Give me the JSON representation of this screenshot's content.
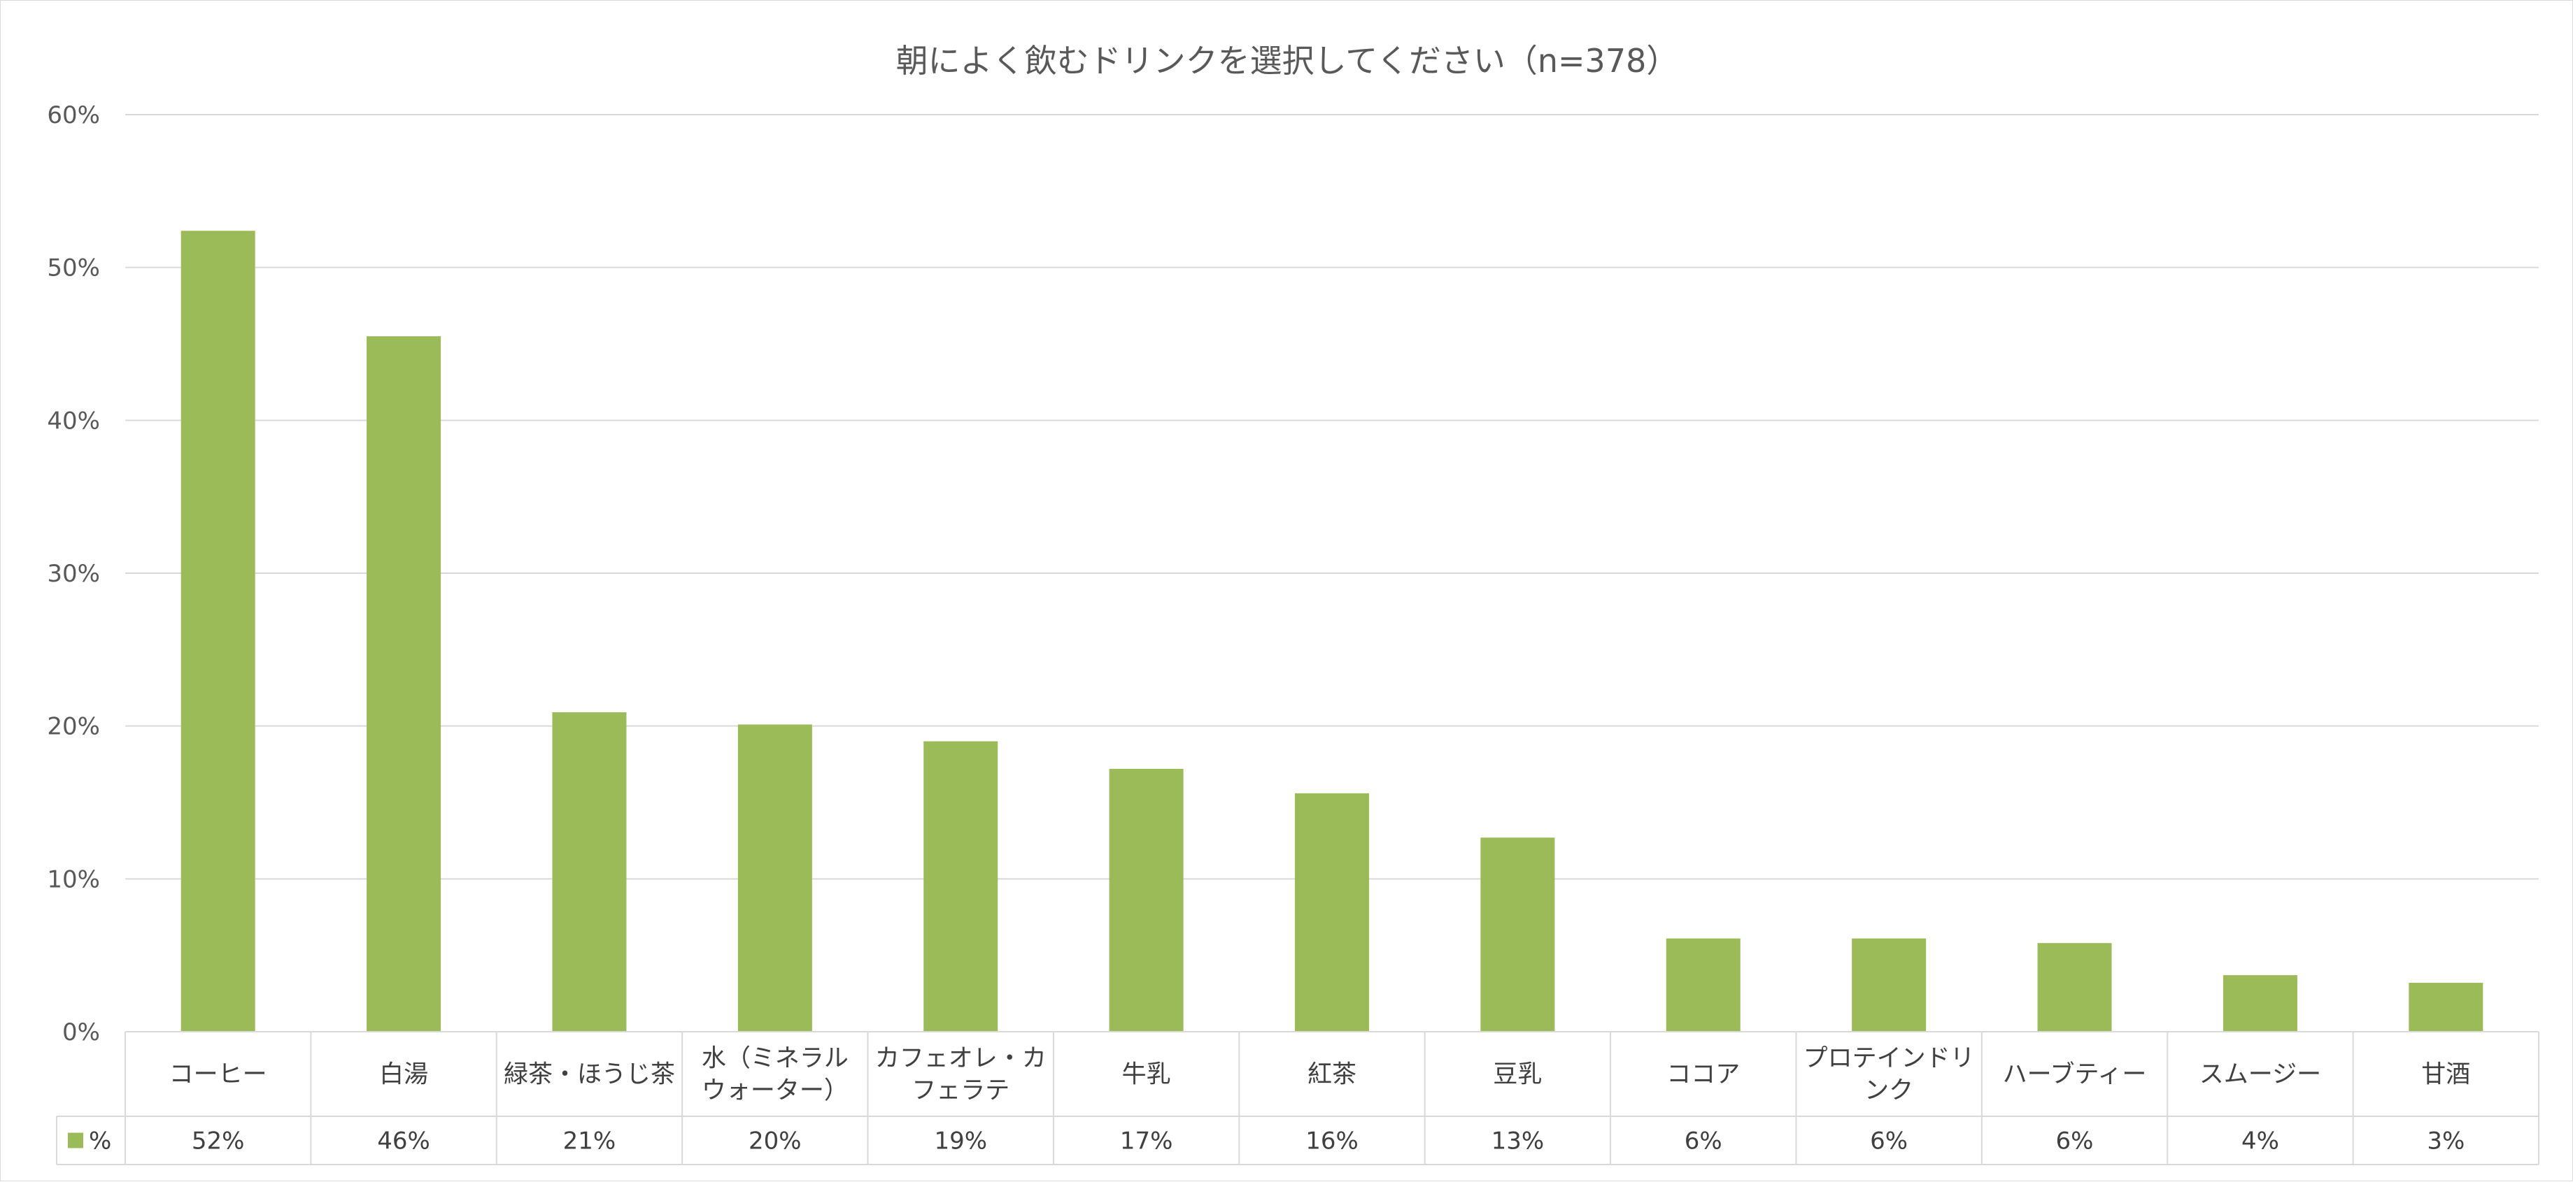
{
  "chart_data": {
    "type": "bar",
    "title": "朝によく飲むドリンクを選択してください（n=378）",
    "xlabel": "",
    "ylabel": "",
    "ylim": [
      0,
      60
    ],
    "y_ticks": [
      "0%",
      "10%",
      "20%",
      "30%",
      "40%",
      "50%",
      "60%"
    ],
    "y_tick_values": [
      0,
      10,
      20,
      30,
      40,
      50,
      60
    ],
    "grid": true,
    "legend_placement": "data-table-left",
    "bar_color": "#9bbb59",
    "categories": [
      [
        "コーヒー"
      ],
      [
        "白湯"
      ],
      [
        "緑茶・ほうじ茶"
      ],
      [
        "水（ミネラル",
        "ウォーター）"
      ],
      [
        "カフェオレ・カ",
        "フェラテ"
      ],
      [
        "牛乳"
      ],
      [
        "紅茶"
      ],
      [
        "豆乳"
      ],
      [
        "ココア"
      ],
      [
        "プロテインドリ",
        "ンク"
      ],
      [
        "ハーブティー"
      ],
      [
        "スムージー"
      ],
      [
        "甘酒"
      ]
    ],
    "series": [
      {
        "name": "%",
        "values": [
          52.4,
          45.5,
          20.9,
          20.1,
          19.0,
          17.2,
          15.6,
          12.7,
          6.1,
          6.1,
          5.8,
          3.7,
          3.2
        ],
        "labels": [
          "52%",
          "46%",
          "21%",
          "20%",
          "19%",
          "17%",
          "16%",
          "13%",
          "6%",
          "6%",
          "6%",
          "4%",
          "3%"
        ]
      }
    ]
  }
}
